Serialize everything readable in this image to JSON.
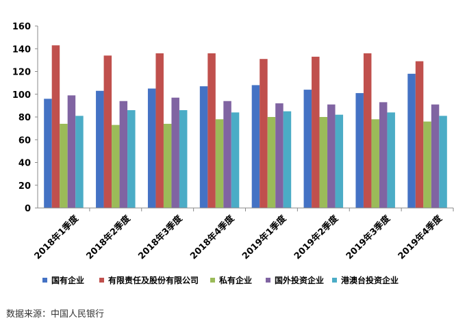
{
  "chart_data": {
    "type": "bar",
    "categories": [
      "2018年1季度",
      "2018年2季度",
      "2018年3季度",
      "2018年4季度",
      "2019年1季度",
      "2019年2季度",
      "2019年3季度",
      "2019年4季度"
    ],
    "series": [
      {
        "name": "国有企业",
        "color": "#4472C4",
        "values": [
          96,
          103,
          105,
          107,
          108,
          104,
          101,
          118
        ]
      },
      {
        "name": "有限责任及股份有限公司",
        "color": "#C0504D",
        "values": [
          143,
          134,
          136,
          136,
          131,
          133,
          136,
          129
        ]
      },
      {
        "name": "私有企业",
        "color": "#9BBB59",
        "values": [
          74,
          73,
          74,
          78,
          80,
          80,
          78,
          76
        ]
      },
      {
        "name": "国外投资企业",
        "color": "#8064A2",
        "values": [
          99,
          94,
          97,
          94,
          92,
          91,
          93,
          91
        ]
      },
      {
        "name": "港澳台投资企业",
        "color": "#4BACC6",
        "values": [
          81,
          86,
          86,
          84,
          85,
          82,
          84,
          81
        ]
      }
    ],
    "yticks": [
      "0",
      "20",
      "40",
      "60",
      "80",
      "100",
      "120",
      "140",
      "160"
    ],
    "ylim": [
      0,
      160
    ],
    "legend_position": "bottom",
    "grid": false
  },
  "source": "数据来源：中国人民银行"
}
